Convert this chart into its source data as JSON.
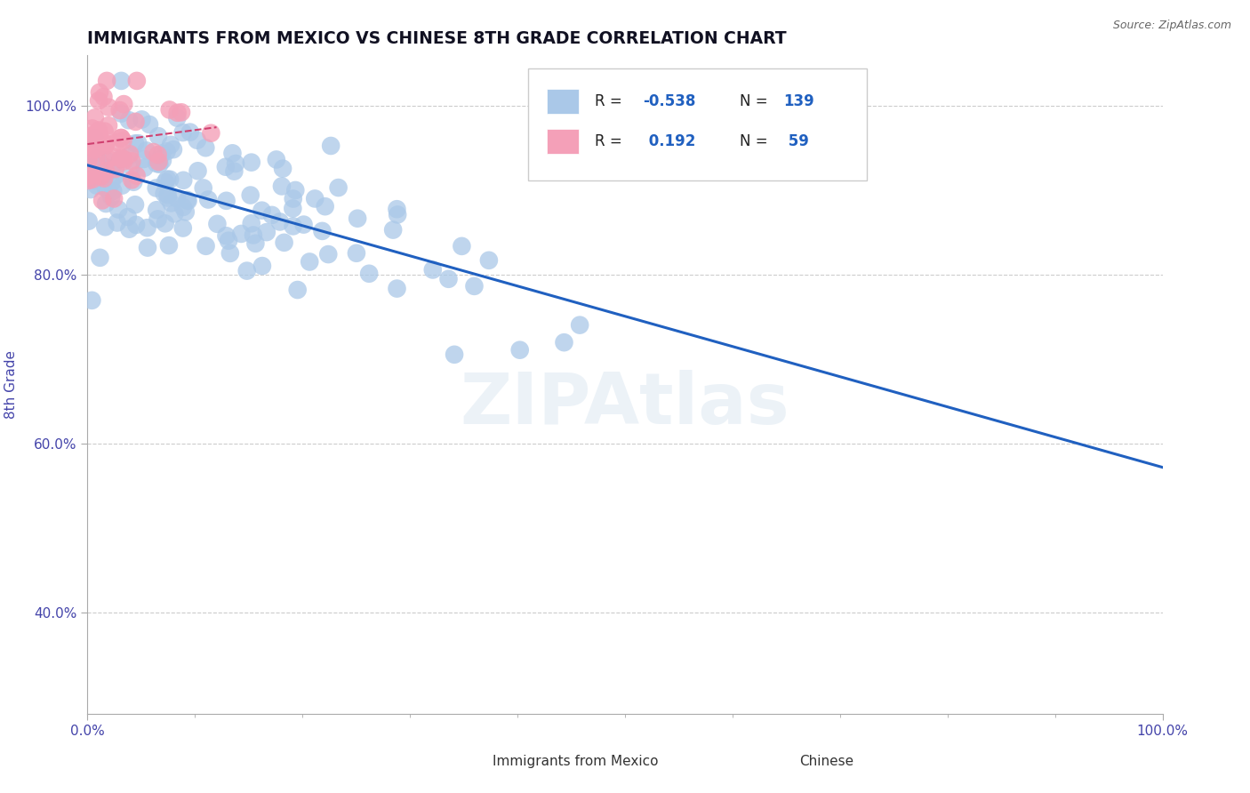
{
  "title": "IMMIGRANTS FROM MEXICO VS CHINESE 8TH GRADE CORRELATION CHART",
  "source_text": "Source: ZipAtlas.com",
  "ylabel": "8th Grade",
  "xlim": [
    0.0,
    1.0
  ],
  "ylim": [
    0.28,
    1.06
  ],
  "ytick_labels": [
    "40.0%",
    "60.0%",
    "80.0%",
    "100.0%"
  ],
  "ytick_values": [
    0.4,
    0.6,
    0.8,
    1.0
  ],
  "legend_r_blue": "-0.538",
  "legend_n_blue": "139",
  "legend_r_pink": "0.192",
  "legend_n_pink": "59",
  "blue_color": "#aac8e8",
  "pink_color": "#f4a0b8",
  "line_color": "#2060c0",
  "pink_line_color": "#d04070",
  "title_color": "#111122",
  "axis_label_color": "#4444aa",
  "tick_color": "#4444aa",
  "watermark": "ZIPAtlas",
  "blue_line_x": [
    0.0,
    1.0
  ],
  "blue_line_y": [
    0.93,
    0.572
  ],
  "pink_line_x": [
    0.0,
    0.12
  ],
  "pink_line_y": [
    0.955,
    0.975
  ]
}
